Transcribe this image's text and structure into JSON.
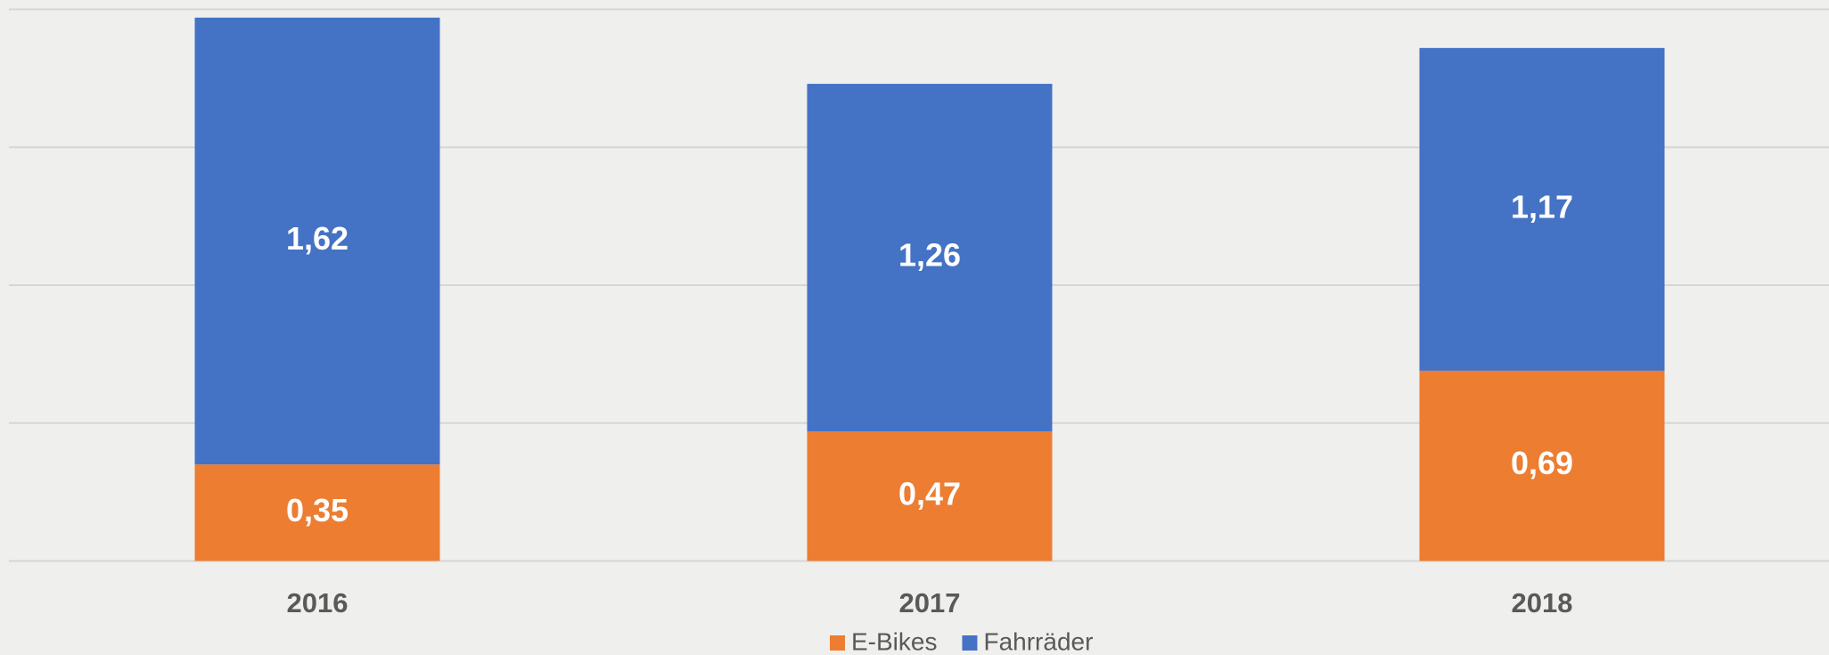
{
  "chart_data": {
    "type": "stacked_bar",
    "categories": [
      "2016",
      "2017",
      "2018"
    ],
    "series": [
      {
        "name": "E-Bikes",
        "color": "#ed7d31",
        "values": [
          0.35,
          0.47,
          0.69
        ],
        "value_labels": [
          "0,35",
          "0,47",
          "0,69"
        ]
      },
      {
        "name": "Fahrräder",
        "color": "#4472c4",
        "values": [
          1.62,
          1.26,
          1.17
        ],
        "value_labels": [
          "1,62",
          "1,26",
          "1,17"
        ]
      }
    ],
    "ylim": [
      0,
      2
    ],
    "yticks": [
      0,
      0.5,
      1,
      1.5,
      2
    ],
    "grid": true,
    "legend": "bottom"
  }
}
